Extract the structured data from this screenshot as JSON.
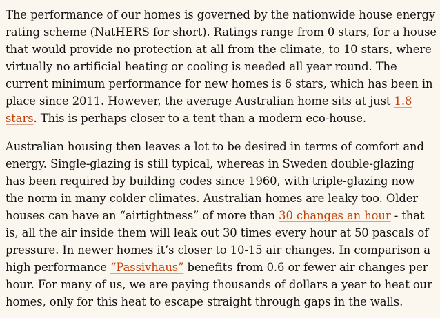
{
  "article": {
    "paragraphs": [
      {
        "before": "The performance of our homes is governed by the nationwide house energy rating scheme (NatHERS for short). Ratings range from 0 stars, for a house that would provide no protection at all from the climate, to 10 stars, where virtually no artificial heating or cooling is needed all year round. The current minimum performance for new homes is 6 stars, which has been in place since 2011. However, the average Australian home sits at just ",
        "link": "1.8 stars",
        "after": ". This is perhaps closer to a tent than a modern eco-house."
      },
      {
        "before": "Australian housing then leaves a lot to be desired in terms of comfort and energy. Single-glazing is still typical, whereas in Sweden double-glazing has been required by building codes since 1960, with triple-glazing now the norm in many colder climates. Australian homes are leaky too. Older houses can have an “airtightness” of more than ",
        "link": "30 changes an hour",
        "middle": " - that is, all the air inside them will leak out 30 times every hour at 50 pascals of pressure. In newer homes it’s closer to 10-15 air changes. In comparison a high performance ",
        "link2": "“Passivhaus”",
        "after": " benefits from 0.6 or fewer air changes per hour. For many of us, we are paying thousands of dollars a year to heat our homes, only for this heat to escape straight through gaps in the walls."
      }
    ]
  },
  "colors": {
    "background": "#fbf7ef",
    "text": "#121212",
    "link": "#c2410c"
  }
}
